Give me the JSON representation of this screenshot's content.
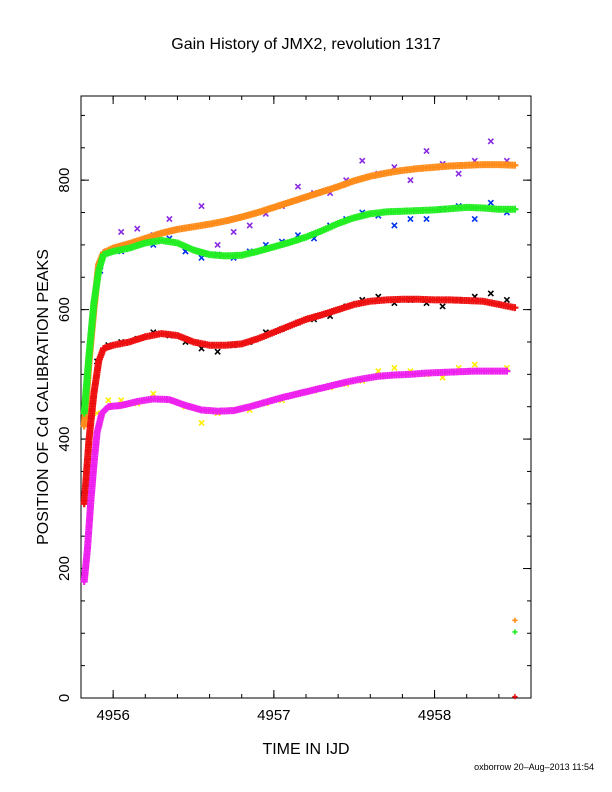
{
  "chart_data": {
    "type": "scatter",
    "title": "Gain History of JMX2, revolution 1317",
    "xlabel": "TIME IN IJD",
    "ylabel": "POSITION OF Cd CALIBRATION PEAKS",
    "xlim": [
      4955.8,
      4958.6
    ],
    "ylim": [
      0,
      930
    ],
    "xticks": [
      4956,
      4957,
      4958
    ],
    "yticks": [
      0,
      200,
      400,
      600,
      800
    ],
    "grid": false,
    "legend": "none",
    "series": [
      {
        "kind": "raw",
        "marker": "x",
        "color": "#8a2be2",
        "points": [
          [
            4955.88,
            600
          ],
          [
            4955.92,
            672
          ],
          [
            4955.96,
            690
          ],
          [
            4956.05,
            720
          ],
          [
            4956.15,
            725
          ],
          [
            4956.25,
            715
          ],
          [
            4956.35,
            740
          ],
          [
            4956.45,
            690
          ],
          [
            4956.55,
            760
          ],
          [
            4956.65,
            700
          ],
          [
            4956.75,
            720
          ],
          [
            4956.85,
            730
          ],
          [
            4956.95,
            748
          ],
          [
            4957.05,
            760
          ],
          [
            4957.15,
            790
          ],
          [
            4957.25,
            780
          ],
          [
            4957.35,
            780
          ],
          [
            4957.45,
            800
          ],
          [
            4957.55,
            830
          ],
          [
            4957.65,
            810
          ],
          [
            4957.75,
            820
          ],
          [
            4957.85,
            800
          ],
          [
            4957.95,
            845
          ],
          [
            4958.05,
            825
          ],
          [
            4958.15,
            810
          ],
          [
            4958.25,
            830
          ],
          [
            4958.35,
            860
          ],
          [
            4958.45,
            830
          ]
        ]
      },
      {
        "kind": "raw",
        "marker": "x",
        "color": "#0033ee",
        "points": [
          [
            4955.92,
            660
          ],
          [
            4955.98,
            690
          ],
          [
            4956.05,
            690
          ],
          [
            4956.15,
            700
          ],
          [
            4956.25,
            700
          ],
          [
            4956.35,
            710
          ],
          [
            4956.45,
            690
          ],
          [
            4956.55,
            680
          ],
          [
            4956.65,
            685
          ],
          [
            4956.75,
            680
          ],
          [
            4956.85,
            690
          ],
          [
            4956.95,
            700
          ],
          [
            4957.05,
            705
          ],
          [
            4957.15,
            715
          ],
          [
            4957.25,
            710
          ],
          [
            4957.35,
            730
          ],
          [
            4957.45,
            740
          ],
          [
            4957.55,
            750
          ],
          [
            4957.65,
            745
          ],
          [
            4957.75,
            730
          ],
          [
            4957.85,
            740
          ],
          [
            4957.95,
            740
          ],
          [
            4958.05,
            755
          ],
          [
            4958.15,
            760
          ],
          [
            4958.25,
            740
          ],
          [
            4958.35,
            765
          ],
          [
            4958.45,
            750
          ]
        ]
      },
      {
        "kind": "raw",
        "marker": "x",
        "color": "#000000",
        "points": [
          [
            4955.9,
            520
          ],
          [
            4955.97,
            545
          ],
          [
            4956.05,
            550
          ],
          [
            4956.15,
            555
          ],
          [
            4956.25,
            565
          ],
          [
            4956.35,
            560
          ],
          [
            4956.45,
            550
          ],
          [
            4956.55,
            540
          ],
          [
            4956.65,
            535
          ],
          [
            4956.75,
            545
          ],
          [
            4956.85,
            550
          ],
          [
            4956.95,
            565
          ],
          [
            4957.05,
            570
          ],
          [
            4957.15,
            580
          ],
          [
            4957.25,
            585
          ],
          [
            4957.35,
            590
          ],
          [
            4957.45,
            605
          ],
          [
            4957.55,
            615
          ],
          [
            4957.65,
            620
          ],
          [
            4957.75,
            610
          ],
          [
            4957.85,
            615
          ],
          [
            4957.95,
            610
          ],
          [
            4958.05,
            605
          ],
          [
            4958.15,
            615
          ],
          [
            4958.25,
            620
          ],
          [
            4958.35,
            625
          ],
          [
            4958.45,
            615
          ]
        ]
      },
      {
        "kind": "raw",
        "marker": "x",
        "color": "#ffee00",
        "points": [
          [
            4955.9,
            440
          ],
          [
            4955.97,
            460
          ],
          [
            4956.05,
            460
          ],
          [
            4956.15,
            455
          ],
          [
            4956.25,
            470
          ],
          [
            4956.35,
            460
          ],
          [
            4956.45,
            450
          ],
          [
            4956.55,
            425
          ],
          [
            4956.65,
            440
          ],
          [
            4956.75,
            445
          ],
          [
            4956.85,
            445
          ],
          [
            4956.95,
            455
          ],
          [
            4957.05,
            460
          ],
          [
            4957.15,
            470
          ],
          [
            4957.25,
            475
          ],
          [
            4957.35,
            480
          ],
          [
            4957.45,
            485
          ],
          [
            4957.55,
            490
          ],
          [
            4957.65,
            505
          ],
          [
            4957.75,
            510
          ],
          [
            4957.85,
            505
          ],
          [
            4957.95,
            500
          ],
          [
            4958.05,
            495
          ],
          [
            4958.15,
            510
          ],
          [
            4958.25,
            515
          ],
          [
            4958.35,
            505
          ],
          [
            4958.45,
            510
          ]
        ]
      },
      {
        "kind": "smooth",
        "marker": "+",
        "color": "#ff8c1a",
        "points": [
          [
            4955.82,
            420
          ],
          [
            4955.85,
            520
          ],
          [
            4955.88,
            600
          ],
          [
            4955.91,
            670
          ],
          [
            4955.94,
            688
          ],
          [
            4956.0,
            695
          ],
          [
            4956.1,
            702
          ],
          [
            4956.2,
            710
          ],
          [
            4956.3,
            718
          ],
          [
            4956.4,
            724
          ],
          [
            4956.5,
            728
          ],
          [
            4956.6,
            732
          ],
          [
            4956.7,
            737
          ],
          [
            4956.8,
            743
          ],
          [
            4956.9,
            750
          ],
          [
            4957.0,
            758
          ],
          [
            4957.1,
            766
          ],
          [
            4957.2,
            774
          ],
          [
            4957.3,
            782
          ],
          [
            4957.4,
            790
          ],
          [
            4957.5,
            799
          ],
          [
            4957.6,
            806
          ],
          [
            4957.7,
            811
          ],
          [
            4957.8,
            815
          ],
          [
            4957.9,
            818
          ],
          [
            4958.0,
            820
          ],
          [
            4958.1,
            822
          ],
          [
            4958.2,
            823
          ],
          [
            4958.3,
            824
          ],
          [
            4958.4,
            824
          ],
          [
            4958.5,
            823
          ]
        ]
      },
      {
        "kind": "smooth",
        "marker": "+",
        "color": "#22ee22",
        "points": [
          [
            4955.82,
            440
          ],
          [
            4955.85,
            530
          ],
          [
            4955.88,
            610
          ],
          [
            4955.91,
            660
          ],
          [
            4955.94,
            685
          ],
          [
            4956.0,
            690
          ],
          [
            4956.1,
            695
          ],
          [
            4956.2,
            703
          ],
          [
            4956.3,
            707
          ],
          [
            4956.4,
            703
          ],
          [
            4956.5,
            692
          ],
          [
            4956.6,
            685
          ],
          [
            4956.7,
            683
          ],
          [
            4956.8,
            684
          ],
          [
            4956.9,
            690
          ],
          [
            4957.0,
            697
          ],
          [
            4957.1,
            704
          ],
          [
            4957.2,
            712
          ],
          [
            4957.3,
            722
          ],
          [
            4957.4,
            733
          ],
          [
            4957.5,
            742
          ],
          [
            4957.6,
            748
          ],
          [
            4957.7,
            751
          ],
          [
            4957.8,
            752
          ],
          [
            4957.9,
            753
          ],
          [
            4958.0,
            754
          ],
          [
            4958.1,
            756
          ],
          [
            4958.2,
            758
          ],
          [
            4958.3,
            757
          ],
          [
            4958.4,
            755
          ],
          [
            4958.5,
            755
          ]
        ]
      },
      {
        "kind": "smooth",
        "marker": "+",
        "color": "#ee1111",
        "points": [
          [
            4955.82,
            300
          ],
          [
            4955.85,
            400
          ],
          [
            4955.88,
            470
          ],
          [
            4955.91,
            520
          ],
          [
            4955.94,
            540
          ],
          [
            4956.0,
            545
          ],
          [
            4956.1,
            550
          ],
          [
            4956.2,
            558
          ],
          [
            4956.3,
            563
          ],
          [
            4956.4,
            560
          ],
          [
            4956.5,
            550
          ],
          [
            4956.6,
            545
          ],
          [
            4956.7,
            545
          ],
          [
            4956.8,
            547
          ],
          [
            4956.9,
            555
          ],
          [
            4957.0,
            565
          ],
          [
            4957.1,
            575
          ],
          [
            4957.2,
            585
          ],
          [
            4957.3,
            592
          ],
          [
            4957.4,
            600
          ],
          [
            4957.5,
            608
          ],
          [
            4957.6,
            613
          ],
          [
            4957.7,
            615
          ],
          [
            4957.8,
            616
          ],
          [
            4957.9,
            616
          ],
          [
            4958.0,
            615
          ],
          [
            4958.1,
            615
          ],
          [
            4958.2,
            614
          ],
          [
            4958.3,
            613
          ],
          [
            4958.4,
            608
          ],
          [
            4958.5,
            603
          ]
        ]
      },
      {
        "kind": "smooth",
        "marker": "+",
        "color": "#ee22ee",
        "points": [
          [
            4955.82,
            180
          ],
          [
            4955.84,
            230
          ],
          [
            4955.86,
            300
          ],
          [
            4955.88,
            360
          ],
          [
            4955.9,
            410
          ],
          [
            4955.93,
            440
          ],
          [
            4955.97,
            450
          ],
          [
            4956.05,
            452
          ],
          [
            4956.15,
            458
          ],
          [
            4956.25,
            462
          ],
          [
            4956.35,
            461
          ],
          [
            4956.45,
            452
          ],
          [
            4956.55,
            445
          ],
          [
            4956.65,
            443
          ],
          [
            4956.75,
            444
          ],
          [
            4956.85,
            450
          ],
          [
            4956.95,
            457
          ],
          [
            4957.05,
            464
          ],
          [
            4957.15,
            470
          ],
          [
            4957.25,
            476
          ],
          [
            4957.35,
            482
          ],
          [
            4957.45,
            488
          ],
          [
            4957.55,
            493
          ],
          [
            4957.65,
            497
          ],
          [
            4957.75,
            499
          ],
          [
            4957.85,
            500
          ],
          [
            4957.95,
            502
          ],
          [
            4958.05,
            503
          ],
          [
            4958.15,
            504
          ],
          [
            4958.25,
            505
          ],
          [
            4958.35,
            505
          ],
          [
            4958.45,
            505
          ]
        ]
      },
      {
        "kind": "outlier",
        "marker": "+",
        "color": "#ff8c1a",
        "points": [
          [
            4958.5,
            120
          ]
        ]
      },
      {
        "kind": "outlier",
        "marker": "+",
        "color": "#22ee22",
        "points": [
          [
            4958.5,
            102
          ]
        ]
      },
      {
        "kind": "outlier",
        "marker": "+",
        "color": "#ee1111",
        "points": [
          [
            4958.5,
            2
          ]
        ]
      }
    ]
  },
  "footer": {
    "stamp": "oxborrow 20–Aug–2013 11:54"
  }
}
